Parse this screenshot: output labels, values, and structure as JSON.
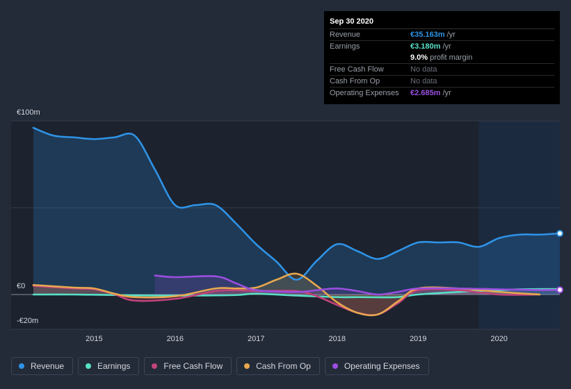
{
  "chart_data": {
    "type": "area",
    "x_ticks": [
      "2015",
      "2016",
      "2017",
      "2018",
      "2019",
      "2020"
    ],
    "y_ticks": [
      "€100m",
      "€0",
      "-€20m"
    ],
    "ylim": [
      -20,
      100
    ],
    "xlim": [
      2014.25,
      2020.75
    ],
    "grid": true,
    "legend_position": "bottom-left",
    "series": [
      {
        "name": "Revenue",
        "color": "#2e93e6",
        "points": [
          [
            2014.25,
            96
          ],
          [
            2014.5,
            91.5
          ],
          [
            2014.75,
            90.5
          ],
          [
            2015.0,
            89.5
          ],
          [
            2015.25,
            90.5
          ],
          [
            2015.5,
            91.5
          ],
          [
            2015.75,
            72
          ],
          [
            2016.0,
            51.5
          ],
          [
            2016.25,
            51.5
          ],
          [
            2016.5,
            51.5
          ],
          [
            2016.75,
            41
          ],
          [
            2017.0,
            29
          ],
          [
            2017.25,
            19
          ],
          [
            2017.5,
            8.5
          ],
          [
            2017.75,
            19.5
          ],
          [
            2018.0,
            29
          ],
          [
            2018.25,
            25
          ],
          [
            2018.5,
            20.5
          ],
          [
            2018.75,
            25
          ],
          [
            2019.0,
            30
          ],
          [
            2019.25,
            30
          ],
          [
            2019.5,
            30
          ],
          [
            2019.75,
            27.5
          ],
          [
            2020.0,
            32.5
          ],
          [
            2020.25,
            34.5
          ],
          [
            2020.5,
            34.5
          ],
          [
            2020.75,
            35.2
          ]
        ]
      },
      {
        "name": "Earnings",
        "color": "#58e1c7",
        "points": [
          [
            2014.25,
            0
          ],
          [
            2014.75,
            0
          ],
          [
            2015.25,
            -0.3
          ],
          [
            2015.75,
            -0.6
          ],
          [
            2016.25,
            -0.6
          ],
          [
            2016.75,
            -0.3
          ],
          [
            2017.0,
            0.5
          ],
          [
            2017.5,
            -0.6
          ],
          [
            2018.0,
            -1.5
          ],
          [
            2018.25,
            -1.5
          ],
          [
            2018.5,
            -1.6
          ],
          [
            2018.75,
            -1.5
          ],
          [
            2019.0,
            0
          ],
          [
            2019.5,
            1.5
          ],
          [
            2020.0,
            2.5
          ],
          [
            2020.25,
            3.0
          ],
          [
            2020.75,
            3.2
          ]
        ]
      },
      {
        "name": "Free Cash Flow",
        "color": "#c2437a",
        "points": [
          [
            2014.25,
            5
          ],
          [
            2014.75,
            3.5
          ],
          [
            2015.0,
            3.0
          ],
          [
            2015.25,
            0.2
          ],
          [
            2015.5,
            -3.5
          ],
          [
            2016.0,
            -2.5
          ],
          [
            2016.5,
            2.0
          ],
          [
            2016.75,
            2.5
          ],
          [
            2017.0,
            2.0
          ],
          [
            2017.5,
            2.0
          ],
          [
            2017.75,
            -1.0
          ],
          [
            2018.0,
            -6.0
          ],
          [
            2018.25,
            -10.5
          ],
          [
            2018.5,
            -11.5
          ],
          [
            2018.75,
            -5.0
          ],
          [
            2019.0,
            2.5
          ],
          [
            2019.5,
            2.5
          ],
          [
            2020.0,
            0
          ],
          [
            2020.5,
            0
          ]
        ]
      },
      {
        "name": "Cash From Op",
        "color": "#e9a84f",
        "points": [
          [
            2014.25,
            5.5
          ],
          [
            2014.75,
            4
          ],
          [
            2015.0,
            3.5
          ],
          [
            2015.25,
            0.5
          ],
          [
            2015.5,
            -1.5
          ],
          [
            2016.0,
            -1.0
          ],
          [
            2016.5,
            3.5
          ],
          [
            2016.75,
            3.5
          ],
          [
            2017.0,
            4.0
          ],
          [
            2017.25,
            8.5
          ],
          [
            2017.5,
            12.0
          ],
          [
            2017.75,
            5.0
          ],
          [
            2018.0,
            -4.5
          ],
          [
            2018.25,
            -10.5
          ],
          [
            2018.5,
            -11.5
          ],
          [
            2018.75,
            -4.0
          ],
          [
            2019.0,
            3.5
          ],
          [
            2019.5,
            3.5
          ],
          [
            2020.0,
            1.5
          ],
          [
            2020.5,
            0
          ]
        ]
      },
      {
        "name": "Operating Expenses",
        "color": "#9b4fe0",
        "points": [
          [
            2015.75,
            11
          ],
          [
            2016.0,
            10
          ],
          [
            2016.5,
            10.5
          ],
          [
            2016.75,
            6.5
          ],
          [
            2017.0,
            2.5
          ],
          [
            2017.5,
            1.5
          ],
          [
            2017.75,
            2.5
          ],
          [
            2018.0,
            3.5
          ],
          [
            2018.25,
            2.0
          ],
          [
            2018.5,
            0
          ],
          [
            2018.75,
            1.5
          ],
          [
            2019.0,
            3.5
          ],
          [
            2019.5,
            3.5
          ],
          [
            2020.0,
            3.0
          ],
          [
            2020.5,
            2.6
          ],
          [
            2020.75,
            2.7
          ]
        ]
      }
    ]
  },
  "tooltip": {
    "date": "Sep 30 2020",
    "rows": [
      {
        "label": "Revenue",
        "value": "€35.163m",
        "unit": "/yr",
        "color": "#2e93e6"
      },
      {
        "label": "Earnings",
        "value": "€3.180m",
        "unit": "/yr",
        "color": "#58e1c7"
      },
      {
        "label": "",
        "value": "9.0%",
        "unit": "profit margin",
        "color": "#ffffff"
      },
      {
        "label": "Free Cash Flow",
        "value": "No data",
        "unit": "",
        "color": ""
      },
      {
        "label": "Cash From Op",
        "value": "No data",
        "unit": "",
        "color": ""
      },
      {
        "label": "Operating Expenses",
        "value": "€2.685m",
        "unit": "/yr",
        "color": "#9b4fe0"
      }
    ]
  },
  "legend": [
    {
      "label": "Revenue",
      "color": "#2e93e6"
    },
    {
      "label": "Earnings",
      "color": "#58e1c7"
    },
    {
      "label": "Free Cash Flow",
      "color": "#c2437a"
    },
    {
      "label": "Cash From Op",
      "color": "#e9a84f"
    },
    {
      "label": "Operating Expenses",
      "color": "#9b4fe0"
    }
  ]
}
